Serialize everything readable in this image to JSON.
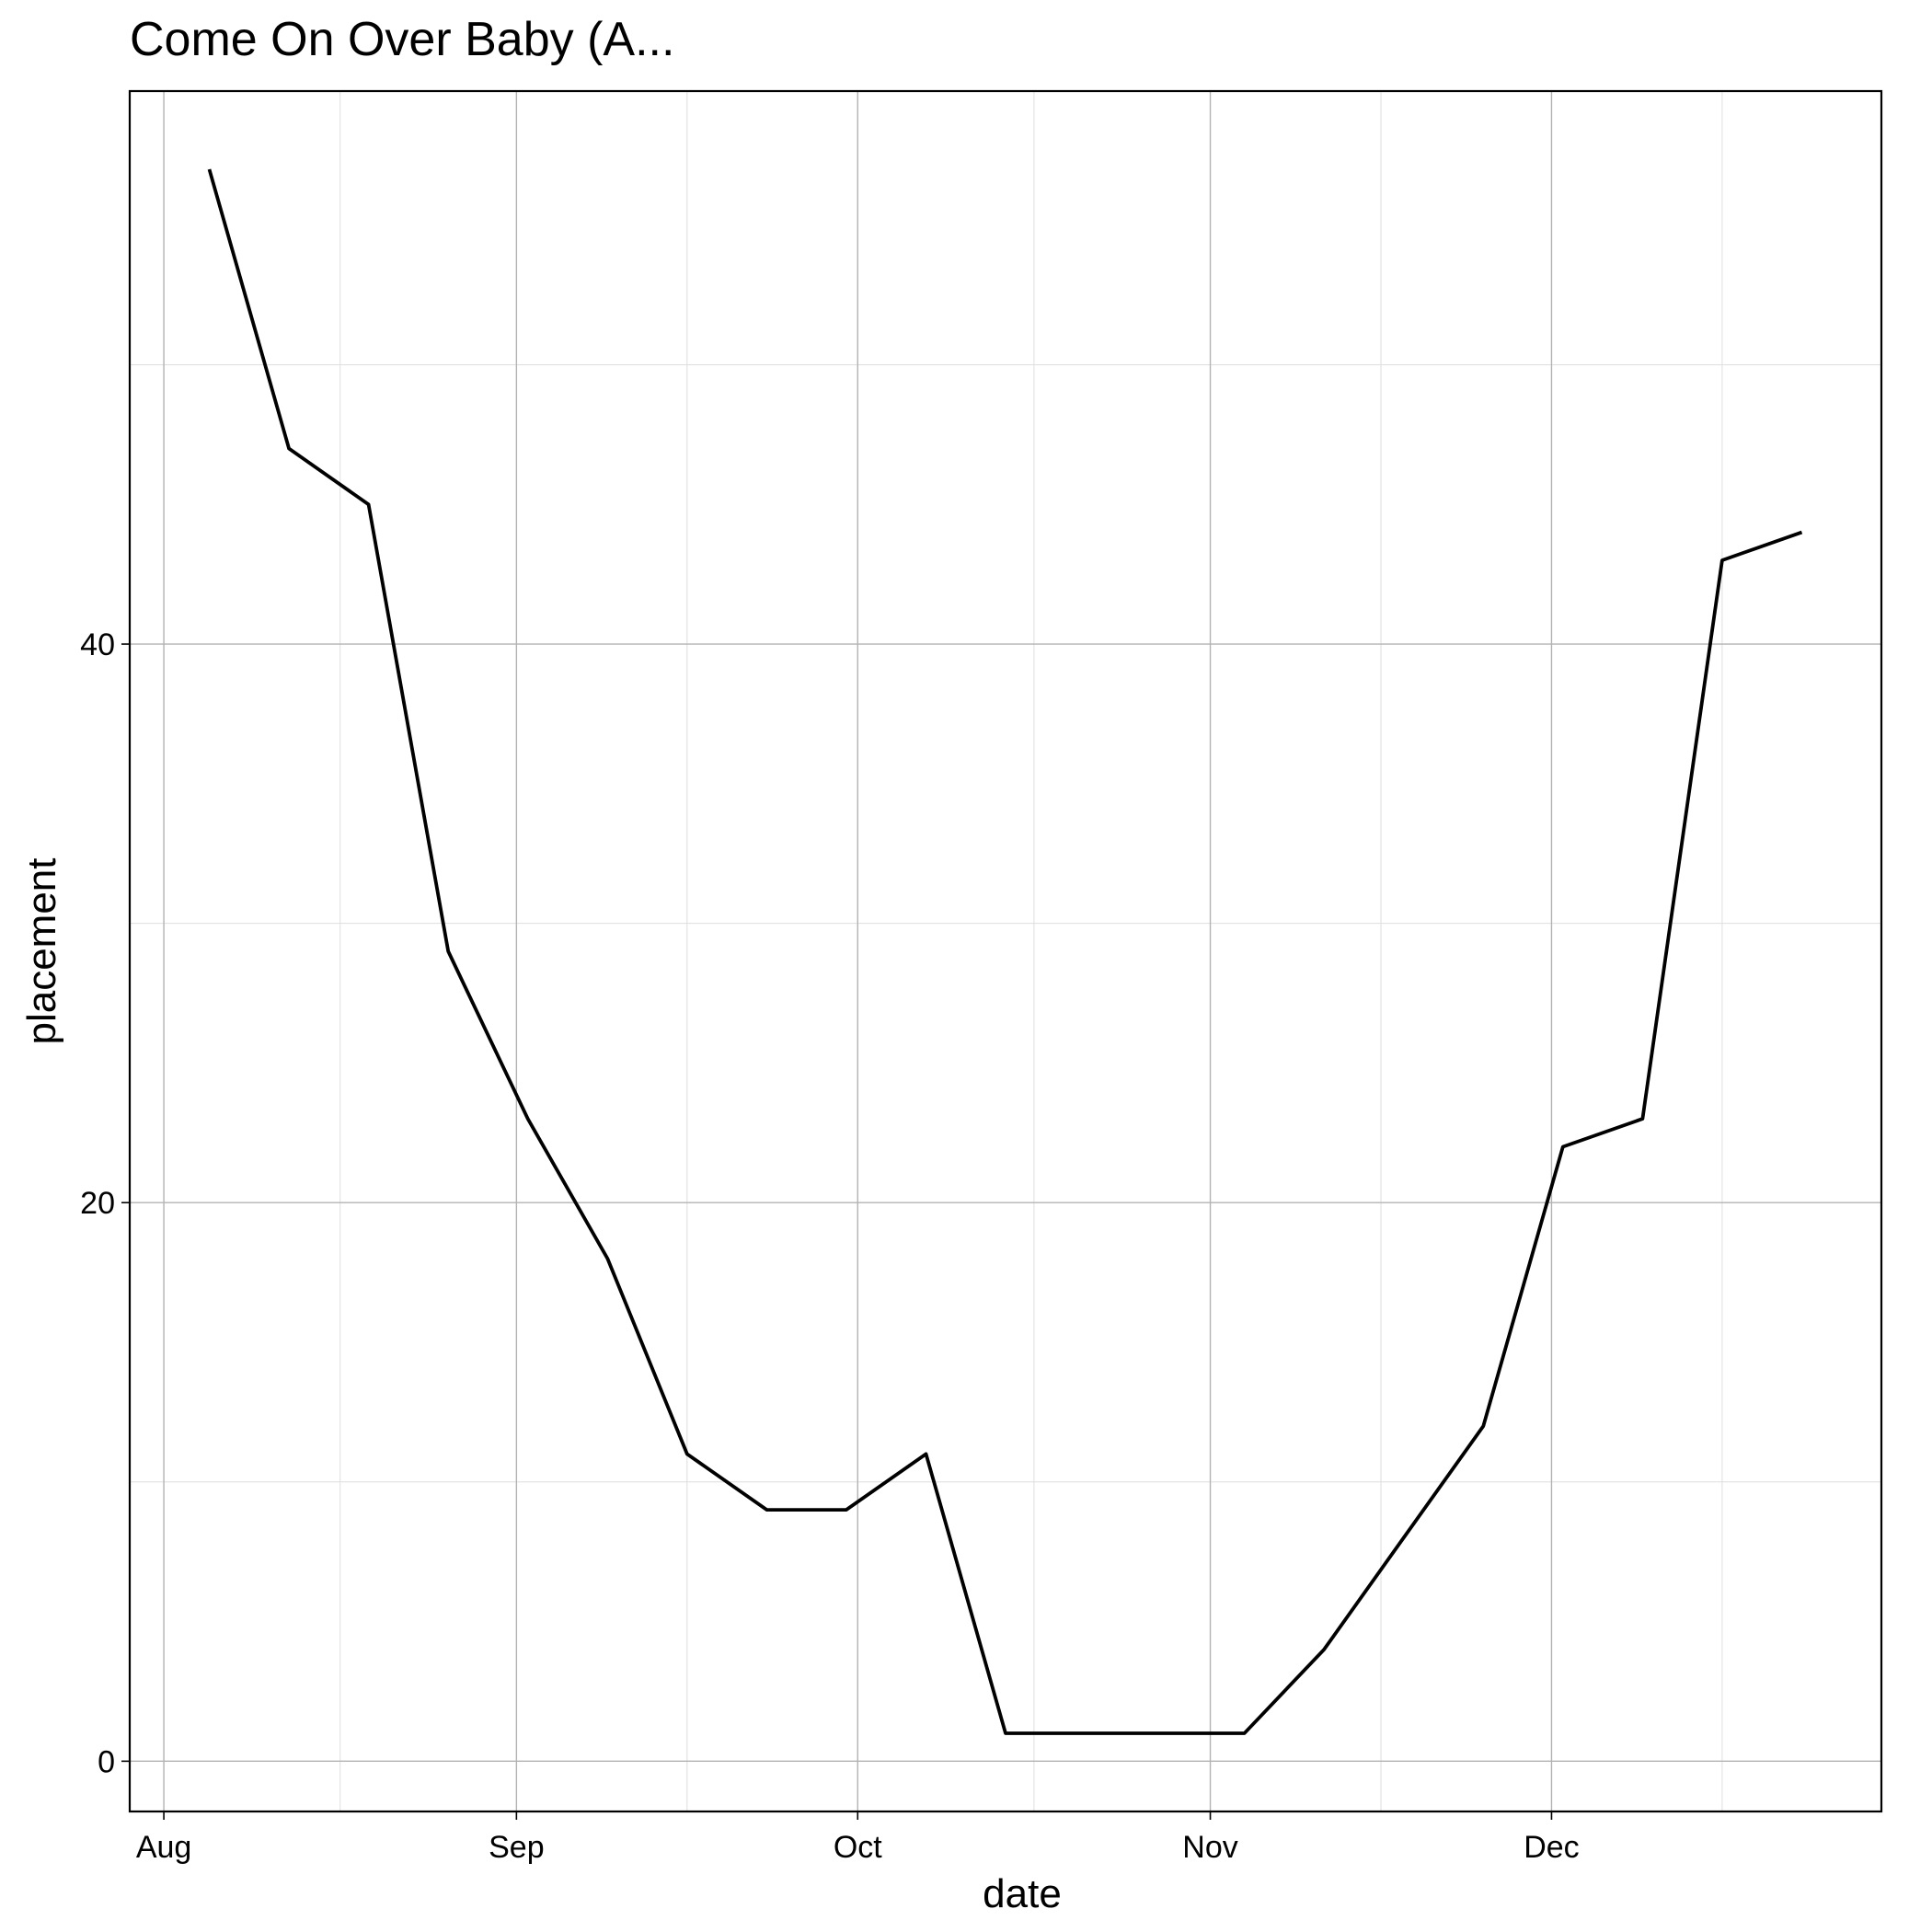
{
  "chart_data": {
    "type": "line",
    "title": "Come On Over Baby (A...",
    "xlabel": "date",
    "ylabel": "placement",
    "x_ticks": [
      {
        "date": "2000-08-01",
        "label": "Aug"
      },
      {
        "date": "2000-09-01",
        "label": "Sep"
      },
      {
        "date": "2000-10-01",
        "label": "Oct"
      },
      {
        "date": "2000-11-01",
        "label": "Nov"
      },
      {
        "date": "2000-12-01",
        "label": "Dec"
      }
    ],
    "y_ticks": [
      0,
      20,
      40
    ],
    "xlim": [
      "2000-07-29",
      "2000-12-30"
    ],
    "ylim": [
      -1.8,
      59.8
    ],
    "grid": true,
    "series": [
      {
        "values": [
          {
            "x": "2000-08-05",
            "y": 57
          },
          {
            "x": "2000-08-12",
            "y": 47
          },
          {
            "x": "2000-08-19",
            "y": 45
          },
          {
            "x": "2000-08-26",
            "y": 29
          },
          {
            "x": "2000-09-02",
            "y": 23
          },
          {
            "x": "2000-09-09",
            "y": 18
          },
          {
            "x": "2000-09-16",
            "y": 11
          },
          {
            "x": "2000-09-23",
            "y": 9
          },
          {
            "x": "2000-09-30",
            "y": 9
          },
          {
            "x": "2000-10-07",
            "y": 11
          },
          {
            "x": "2000-10-14",
            "y": 1
          },
          {
            "x": "2000-10-21",
            "y": 1
          },
          {
            "x": "2000-10-28",
            "y": 1
          },
          {
            "x": "2000-11-04",
            "y": 1
          },
          {
            "x": "2000-11-11",
            "y": 4
          },
          {
            "x": "2000-11-18",
            "y": 8
          },
          {
            "x": "2000-11-25",
            "y": 12
          },
          {
            "x": "2000-12-02",
            "y": 22
          },
          {
            "x": "2000-12-09",
            "y": 23
          },
          {
            "x": "2000-12-16",
            "y": 43
          },
          {
            "x": "2000-12-23",
            "y": 44
          }
        ]
      }
    ]
  }
}
